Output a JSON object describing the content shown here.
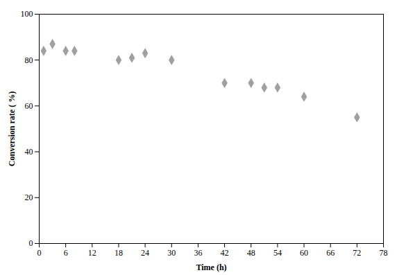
{
  "chart_data": {
    "type": "scatter",
    "x": [
      1,
      3,
      6,
      8,
      18,
      21,
      24,
      30,
      42,
      48,
      51,
      54,
      60,
      72
    ],
    "y": [
      84,
      87,
      84,
      84,
      80,
      81,
      83,
      80,
      70,
      70,
      68,
      68,
      64,
      55
    ],
    "color": "#a0a0a0",
    "marker": "diamond",
    "xlabel": "Time (h)",
    "ylabel": "Conversion rate ( %)",
    "xlim": [
      0,
      78
    ],
    "ylim": [
      0,
      100
    ],
    "xticks": [
      0,
      6,
      12,
      18,
      24,
      30,
      36,
      42,
      48,
      54,
      60,
      66,
      72,
      78
    ],
    "yticks": [
      0,
      20,
      40,
      60,
      80,
      100
    ],
    "grid": false
  }
}
